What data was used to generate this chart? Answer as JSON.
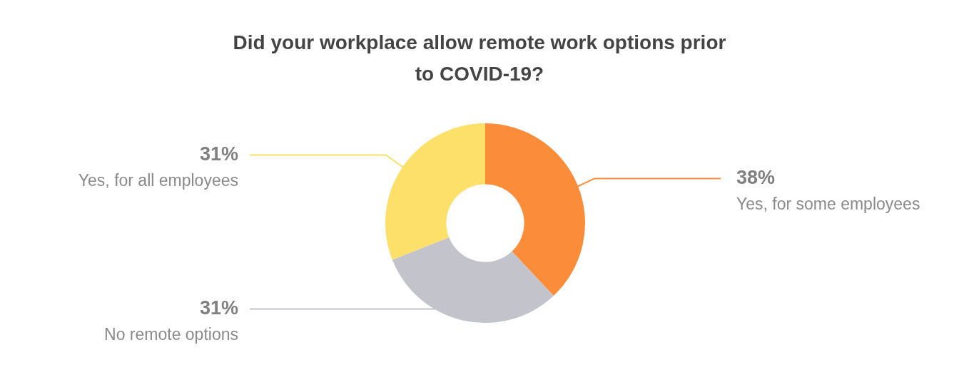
{
  "chart_data": {
    "type": "donut",
    "title": "Did your workplace allow remote work options prior to COVID-19?",
    "categories": [
      "Yes, for some employees",
      "No remote options",
      "Yes, for all employees"
    ],
    "values": [
      38,
      31,
      31
    ],
    "value_labels": [
      "38%",
      "31%",
      "31%"
    ],
    "colors": [
      "#fb8c3a",
      "#c3c3cc",
      "#fde06a"
    ]
  }
}
